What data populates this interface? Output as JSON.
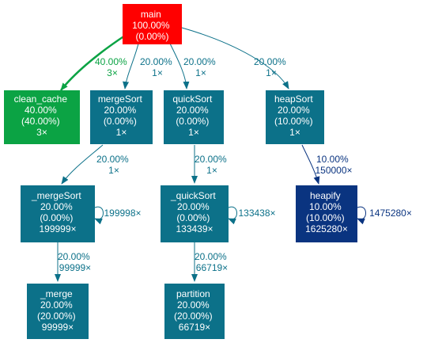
{
  "colors": {
    "main": "#ff0000",
    "clean_cache": "#0ba344",
    "teal": "#0c7189",
    "heapify": "#0a3480",
    "node_text": "#ffffff"
  },
  "nodes": {
    "main": {
      "lines": [
        "main",
        "100.00%",
        "(0.00%)"
      ]
    },
    "clean_cache": {
      "lines": [
        "clean_cache",
        "40.00%",
        "(40.00%)",
        "3×"
      ]
    },
    "mergeSort": {
      "lines": [
        "mergeSort",
        "20.00%",
        "(0.00%)",
        "1×"
      ]
    },
    "quickSort": {
      "lines": [
        "quickSort",
        "20.00%",
        "(0.00%)",
        "1×"
      ]
    },
    "heapSort": {
      "lines": [
        "heapSort",
        "20.00%",
        "(10.00%)",
        "1×"
      ]
    },
    "_mergeSort": {
      "lines": [
        "_mergeSort",
        "20.00%",
        "(0.00%)",
        "199999×"
      ]
    },
    "_quickSort": {
      "lines": [
        "_quickSort",
        "20.00%",
        "(0.00%)",
        "133439×"
      ]
    },
    "heapify": {
      "lines": [
        "heapify",
        "10.00%",
        "(10.00%)",
        "1625280×"
      ]
    },
    "_merge": {
      "lines": [
        "_merge",
        "20.00%",
        "(20.00%)",
        "99999×"
      ]
    },
    "partition": {
      "lines": [
        "partition",
        "20.00%",
        "(20.00%)",
        "66719×"
      ]
    }
  },
  "edges": {
    "main_clean_cache": {
      "lines": [
        "40.00%",
        "3×"
      ]
    },
    "main_mergeSort": {
      "lines": [
        "20.00%",
        "1×"
      ]
    },
    "main_quickSort": {
      "lines": [
        "20.00%",
        "1×"
      ]
    },
    "main_heapSort": {
      "lines": [
        "20.00%",
        "1×"
      ]
    },
    "mergeSort__mergeSort": {
      "lines": [
        "20.00%",
        "1×"
      ]
    },
    "quickSort__quickSort": {
      "lines": [
        "20.00%",
        "1×"
      ]
    },
    "heapSort_heapify": {
      "lines": [
        "10.00%",
        "150000×"
      ]
    },
    "_mergeSort_self": {
      "lines": [
        "199998×"
      ]
    },
    "_quickSort_self": {
      "lines": [
        "133438×"
      ]
    },
    "heapify_self": {
      "lines": [
        "1475280×"
      ]
    },
    "_mergeSort__merge": {
      "lines": [
        "20.00%",
        "99999×"
      ]
    },
    "_quickSort_partition": {
      "lines": [
        "20.00%",
        "66719×"
      ]
    }
  }
}
